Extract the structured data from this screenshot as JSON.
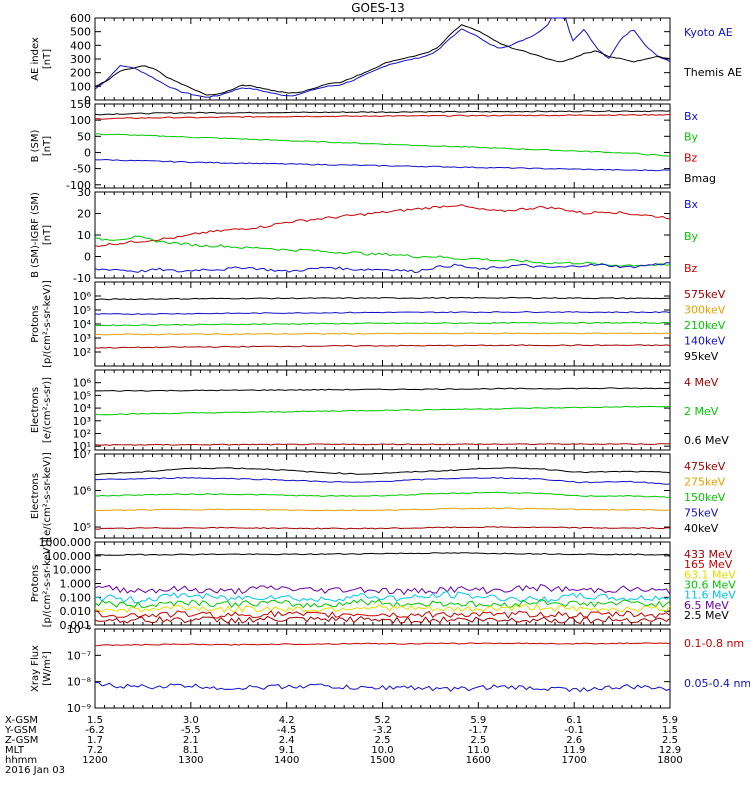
{
  "title": "GOES-13",
  "colors": {
    "black": "#000000",
    "blue": "#1010c8",
    "red": "#c80000",
    "green": "#00c800",
    "orange": "#e8a000",
    "yellow": "#e0e000",
    "cyan": "#00c8e8",
    "purple": "#6a00a8",
    "darkred": "#a00000"
  },
  "chart_data": [
    {
      "type": "line",
      "id": "ae",
      "ylabel": [
        "AE index",
        "[nT]"
      ],
      "ylim": [
        0,
        600
      ],
      "log": false,
      "ticks": [
        "0",
        "100",
        "200",
        "300",
        "400",
        "500",
        "600"
      ],
      "legend": [
        {
          "label": "Kyoto AE",
          "color": "blue"
        },
        {
          "label": "Themis AE",
          "color": "black"
        }
      ],
      "series": [
        {
          "name": "Kyoto AE",
          "color": "blue",
          "values": [
            80,
            150,
            250,
            240,
            200,
            150,
            100,
            60,
            40,
            20,
            30,
            60,
            90,
            80,
            60,
            40,
            30,
            50,
            80,
            100,
            110,
            140,
            180,
            220,
            260,
            280,
            300,
            320,
            360,
            450,
            520,
            480,
            420,
            380,
            400,
            440,
            480,
            550,
            750,
            430,
            520,
            380,
            300,
            450,
            520,
            400,
            320,
            280
          ]
        },
        {
          "name": "Themis AE",
          "color": "black",
          "values": [
            100,
            140,
            210,
            230,
            250,
            220,
            160,
            120,
            80,
            40,
            40,
            70,
            110,
            100,
            80,
            60,
            50,
            60,
            90,
            120,
            130,
            160,
            200,
            240,
            280,
            300,
            320,
            340,
            380,
            480,
            550,
            520,
            470,
            420,
            380,
            360,
            330,
            300,
            280,
            300,
            340,
            360,
            320,
            300,
            280,
            300,
            320,
            300
          ]
        }
      ]
    },
    {
      "type": "line",
      "id": "bsm",
      "ylabel": [
        "B (SM)",
        "[nT]"
      ],
      "ylim": [
        -110,
        150
      ],
      "log": false,
      "ticks": [
        "-100",
        "-50",
        "0",
        "50",
        "100",
        "150"
      ],
      "legend": [
        {
          "label": "Bx",
          "color": "blue"
        },
        {
          "label": "By",
          "color": "green"
        },
        {
          "label": "Bz",
          "color": "red"
        },
        {
          "label": "Bmag",
          "color": "black"
        }
      ],
      "series": [
        {
          "name": "Bmag",
          "color": "black",
          "values": [
            118,
            120,
            122,
            123,
            123,
            124,
            124,
            125,
            125,
            126,
            126,
            126,
            127,
            127,
            128,
            128,
            128
          ]
        },
        {
          "name": "Bz",
          "color": "red",
          "values": [
            104,
            106,
            108,
            108,
            110,
            111,
            112,
            112,
            113,
            113,
            114,
            114,
            115,
            115,
            116,
            116,
            117
          ]
        },
        {
          "name": "By",
          "color": "green",
          "values": [
            57,
            54,
            50,
            46,
            42,
            38,
            34,
            30,
            26,
            22,
            18,
            14,
            10,
            6,
            2,
            -3,
            -12
          ]
        },
        {
          "name": "Bx",
          "color": "blue",
          "values": [
            -22,
            -25,
            -28,
            -31,
            -33,
            -35,
            -37,
            -39,
            -41,
            -43,
            -45,
            -47,
            -49,
            -51,
            -53,
            -55,
            -55
          ]
        }
      ]
    },
    {
      "type": "line",
      "id": "bigrf",
      "ylabel": [
        "B (SM)-IGRF (SM)",
        "[nT]"
      ],
      "ylim": [
        -10,
        30
      ],
      "log": false,
      "ticks": [
        "-10",
        "0",
        "10",
        "20",
        "30"
      ],
      "legend": [
        {
          "label": "Bx",
          "color": "blue"
        },
        {
          "label": "By",
          "color": "green"
        },
        {
          "label": "Bz",
          "color": "red"
        }
      ],
      "series": [
        {
          "name": "Bz",
          "color": "red",
          "values": [
            5,
            6,
            7,
            8,
            9,
            11,
            12,
            13,
            14,
            16,
            17,
            18,
            19,
            20,
            21,
            22,
            23,
            24,
            22,
            21,
            22,
            23,
            22,
            20,
            21,
            20,
            19,
            18
          ]
        },
        {
          "name": "By",
          "color": "green",
          "values": [
            8,
            8,
            9,
            7,
            6,
            5,
            5,
            4,
            4,
            3,
            3,
            2,
            2,
            1,
            1,
            0,
            0,
            -1,
            -1,
            -2,
            -2,
            -3,
            -3,
            -3,
            -4,
            -4,
            -4,
            -4
          ]
        },
        {
          "name": "Bx",
          "color": "blue",
          "values": [
            -6,
            -6,
            -7,
            -6,
            -7,
            -6,
            -6,
            -5,
            -6,
            -7,
            -6,
            -5,
            -6,
            -6,
            -6,
            -7,
            -5,
            -4,
            -6,
            -5,
            -4,
            -5,
            -5,
            -4,
            -4,
            -5,
            -4,
            -3
          ]
        }
      ]
    },
    {
      "type": "line",
      "id": "protons1",
      "ylabel": [
        "Protons",
        "[p/(cm²-s-sr-keV)]"
      ],
      "ylim": [
        1,
        7
      ],
      "log": true,
      "ticks": [
        "10²",
        "10³",
        "10⁴",
        "10⁵",
        "10⁶"
      ],
      "tick_exps": [
        2,
        3,
        4,
        5,
        6
      ],
      "legend": [
        {
          "label": "575keV",
          "color": "darkred"
        },
        {
          "label": "300keV",
          "color": "orange"
        },
        {
          "label": "210keV",
          "color": "green"
        },
        {
          "label": "140keV",
          "color": "blue"
        },
        {
          "label": "95keV",
          "color": "black"
        }
      ],
      "series": [
        {
          "name": "95keV",
          "color": "black",
          "values": [
            5.75,
            5.78,
            5.8,
            5.82,
            5.83,
            5.84,
            5.85,
            5.86,
            5.86,
            5.87,
            5.86,
            5.85,
            5.84,
            5.83
          ]
        },
        {
          "name": "140keV",
          "color": "blue",
          "values": [
            4.7,
            4.72,
            4.74,
            4.76,
            4.78,
            4.8,
            4.82,
            4.83,
            4.84,
            4.85,
            4.86,
            4.85,
            4.84,
            4.84
          ]
        },
        {
          "name": "210keV",
          "color": "green",
          "values": [
            3.9,
            3.92,
            3.95,
            3.97,
            4.0,
            4.02,
            4.04,
            4.05,
            4.06,
            4.07,
            4.08,
            4.08,
            4.08,
            4.08
          ]
        },
        {
          "name": "300keV",
          "color": "orange",
          "values": [
            3.25,
            3.26,
            3.27,
            3.28,
            3.29,
            3.3,
            3.31,
            3.32,
            3.32,
            3.33,
            3.33,
            3.33,
            3.33,
            3.33
          ]
        },
        {
          "name": "575keV",
          "color": "darkred",
          "values": [
            2.3,
            2.32,
            2.35,
            2.37,
            2.4,
            2.42,
            2.44,
            2.45,
            2.46,
            2.47,
            2.48,
            2.48,
            2.48,
            2.48
          ]
        }
      ]
    },
    {
      "type": "line",
      "id": "electrons1",
      "ylabel": [
        "Electrons",
        "[e/(cm²-s-sr)]"
      ],
      "ylim": [
        0.7,
        7
      ],
      "log": true,
      "ticks": [
        "10¹",
        "10²",
        "10³",
        "10⁴",
        "10⁵",
        "10⁶"
      ],
      "tick_exps": [
        1,
        2,
        3,
        4,
        5,
        6
      ],
      "legend": [
        {
          "label": "4 MeV",
          "color": "darkred"
        },
        {
          "label": "2 MeV",
          "color": "green"
        },
        {
          "label": "0.6 MeV",
          "color": "black"
        }
      ],
      "series": [
        {
          "name": "0.6 MeV",
          "color": "black",
          "values": [
            5.35,
            5.37,
            5.38,
            5.4,
            5.42,
            5.44,
            5.46,
            5.48,
            5.5,
            5.52,
            5.53,
            5.55,
            5.56,
            5.56
          ]
        },
        {
          "name": "2 MeV",
          "color": "green",
          "values": [
            3.5,
            3.55,
            3.6,
            3.65,
            3.7,
            3.75,
            3.8,
            3.85,
            3.9,
            3.95,
            4.0,
            4.05,
            4.1,
            4.12
          ]
        },
        {
          "name": "4 MeV",
          "color": "darkred",
          "values": [
            1.1,
            1.1,
            1.12,
            1.12,
            1.13,
            1.14,
            1.14,
            1.15,
            1.15,
            1.16,
            1.16,
            1.17,
            1.17,
            1.17
          ]
        }
      ]
    },
    {
      "type": "line",
      "id": "electrons2",
      "ylabel": [
        "Electrons",
        "[e/(cm²-s-sr-keV)]"
      ],
      "ylim": [
        4.7,
        7
      ],
      "log": true,
      "ticks": [
        "10⁵",
        "10⁶",
        "10⁷"
      ],
      "tick_exps": [
        5,
        6,
        7
      ],
      "legend": [
        {
          "label": "475keV",
          "color": "darkred"
        },
        {
          "label": "275keV",
          "color": "orange"
        },
        {
          "label": "150keV",
          "color": "green"
        },
        {
          "label": "75keV",
          "color": "blue"
        },
        {
          "label": "40keV",
          "color": "black"
        }
      ],
      "series": [
        {
          "name": "40keV",
          "color": "black",
          "values": [
            6.45,
            6.5,
            6.6,
            6.62,
            6.58,
            6.5,
            6.45,
            6.5,
            6.55,
            6.62,
            6.6,
            6.5,
            6.52,
            6.5
          ]
        },
        {
          "name": "75keV",
          "color": "blue",
          "values": [
            6.3,
            6.32,
            6.35,
            6.33,
            6.3,
            6.25,
            6.22,
            6.28,
            6.33,
            6.35,
            6.32,
            6.22,
            6.25,
            6.18
          ]
        },
        {
          "name": "150keV",
          "color": "green",
          "values": [
            5.85,
            5.88,
            5.9,
            5.9,
            5.88,
            5.85,
            5.85,
            5.88,
            5.92,
            5.95,
            5.92,
            5.85,
            5.85,
            5.82
          ]
        },
        {
          "name": "275keV",
          "color": "orange",
          "values": [
            5.45,
            5.47,
            5.48,
            5.48,
            5.47,
            5.46,
            5.46,
            5.47,
            5.5,
            5.52,
            5.5,
            5.48,
            5.47,
            5.47
          ]
        },
        {
          "name": "475keV",
          "color": "darkred",
          "values": [
            4.95,
            4.97,
            4.98,
            4.98,
            4.97,
            4.96,
            4.96,
            4.97,
            4.99,
            5.0,
            4.99,
            4.98,
            4.97,
            4.97
          ]
        }
      ]
    },
    {
      "type": "line",
      "id": "protons2",
      "ylabel": [
        "Protons",
        "[p/(cm²-s-sr-keV)]"
      ],
      "ylim": [
        -3,
        3
      ],
      "log": true,
      "ticks": [
        "0.001",
        "0.010",
        "0.100",
        "1.000",
        "10.000",
        "100.000",
        "1000.000"
      ],
      "tick_exps": [
        -3,
        -2,
        -1,
        0,
        1,
        2,
        3
      ],
      "legend": [
        {
          "label": "433 MeV",
          "color": "darkred"
        },
        {
          "label": "165 MeV",
          "color": "red"
        },
        {
          "label": "63.1 MeV",
          "color": "yellow"
        },
        {
          "label": "30.6 MeV",
          "color": "green"
        },
        {
          "label": "11.6 MeV",
          "color": "cyan"
        },
        {
          "label": "6.5 MeV",
          "color": "purple"
        },
        {
          "label": "2.5 MeV",
          "color": "black"
        }
      ],
      "series": [
        {
          "name": "2.5 MeV",
          "color": "black",
          "values": [
            2.05,
            2.08,
            2.1,
            2.12,
            2.1,
            2.12,
            2.15,
            2.18,
            2.2,
            2.18,
            2.15,
            2.12,
            2.1,
            2.08
          ]
        },
        {
          "name": "6.5 MeV",
          "color": "purple",
          "values": [
            -0.3,
            -0.5,
            -0.4,
            -0.6,
            -0.3,
            -0.5,
            -0.4,
            -0.6,
            -0.4,
            -0.5,
            -0.3,
            -0.5,
            -0.4,
            -0.6
          ]
        },
        {
          "name": "11.6 MeV",
          "color": "cyan",
          "values": [
            -1.0,
            -1.2,
            -0.8,
            -1.1,
            -0.9,
            -1.2,
            -0.9,
            -1.1,
            -0.8,
            -1.0,
            -1.2,
            -0.9,
            -1.1,
            -1.0
          ]
        },
        {
          "name": "30.6 MeV",
          "color": "green",
          "values": [
            -1.4,
            -1.6,
            -1.3,
            -1.5,
            -1.4,
            -1.6,
            -1.3,
            -1.5,
            -1.4,
            -1.6,
            -1.3,
            -1.5,
            -1.4,
            -1.5
          ]
        },
        {
          "name": "63.1 MeV",
          "color": "yellow",
          "values": [
            -1.8,
            -1.9,
            -1.7,
            -1.9,
            -1.8,
            -1.9,
            -1.7,
            -1.8,
            -1.9,
            -1.8,
            -1.7,
            -1.9,
            -1.8,
            -1.8
          ]
        },
        {
          "name": "165 MeV",
          "color": "red",
          "values": [
            -2.2,
            -2.3,
            -2.2,
            -2.3,
            -2.2,
            -2.3,
            -2.2,
            -2.3,
            -2.2,
            -2.3,
            -2.2,
            -2.3,
            -2.2,
            -2.3
          ]
        },
        {
          "name": "433 MeV",
          "color": "darkred",
          "values": [
            -2.6,
            -2.65,
            -2.6,
            -2.65,
            -2.6,
            -2.65,
            -2.6,
            -2.65,
            -2.6,
            -2.65,
            -2.6,
            -2.65,
            -2.6,
            -2.65
          ]
        }
      ]
    },
    {
      "type": "line",
      "id": "xray",
      "ylabel": [
        "Xray Flux",
        "[W/m²]"
      ],
      "ylim": [
        -9,
        -6
      ],
      "log": true,
      "ticks": [
        "10⁻⁹",
        "10⁻⁸",
        "10⁻⁷",
        "10⁻⁶"
      ],
      "tick_exps": [
        -9,
        -8,
        -7,
        -6
      ],
      "tick_labels_display": [
        "10⁻⁶",
        "10⁻⁷",
        "10⁻⁸",
        "10⁻⁹"
      ],
      "legend": [
        {
          "label": "0.1-0.8 nm",
          "color": "red"
        },
        {
          "label": "0.05-0.4 nm",
          "color": "blue"
        }
      ],
      "series": [
        {
          "name": "0.1-0.8 nm",
          "color": "red",
          "values": [
            -6.62,
            -6.6,
            -6.58,
            -6.6,
            -6.58,
            -6.57,
            -6.55,
            -6.56,
            -6.55,
            -6.54,
            -6.55,
            -6.56,
            -6.54,
            -6.55
          ]
        },
        {
          "name": "0.05-0.4 nm",
          "color": "blue",
          "values": [
            -8.1,
            -8.2,
            -8.15,
            -8.25,
            -8.2,
            -8.15,
            -8.25,
            -8.2,
            -8.3,
            -8.2,
            -8.25,
            -8.3,
            -8.2,
            -8.25
          ]
        }
      ]
    }
  ],
  "xaxis": {
    "row_labels": [
      "X-GSM",
      "Y-GSM",
      "Z-GSM",
      "MLT",
      "hhmm"
    ],
    "date": "2016 Jan 03",
    "columns": [
      [
        "1.5",
        "-6.2",
        "1.7",
        "7.2",
        "1200"
      ],
      [
        "3.0",
        "-5.5",
        "2.1",
        "8.1",
        "1300"
      ],
      [
        "4.2",
        "-4.5",
        "2.4",
        "9.1",
        "1400"
      ],
      [
        "5.2",
        "-3.2",
        "2.5",
        "10.0",
        "1500"
      ],
      [
        "5.9",
        "-1.7",
        "2.5",
        "11.0",
        "1600"
      ],
      [
        "6.1",
        "-0.1",
        "2.6",
        "11.9",
        "1700"
      ],
      [
        "5.9",
        "1.5",
        "2.5",
        "12.9",
        "1800"
      ]
    ]
  }
}
